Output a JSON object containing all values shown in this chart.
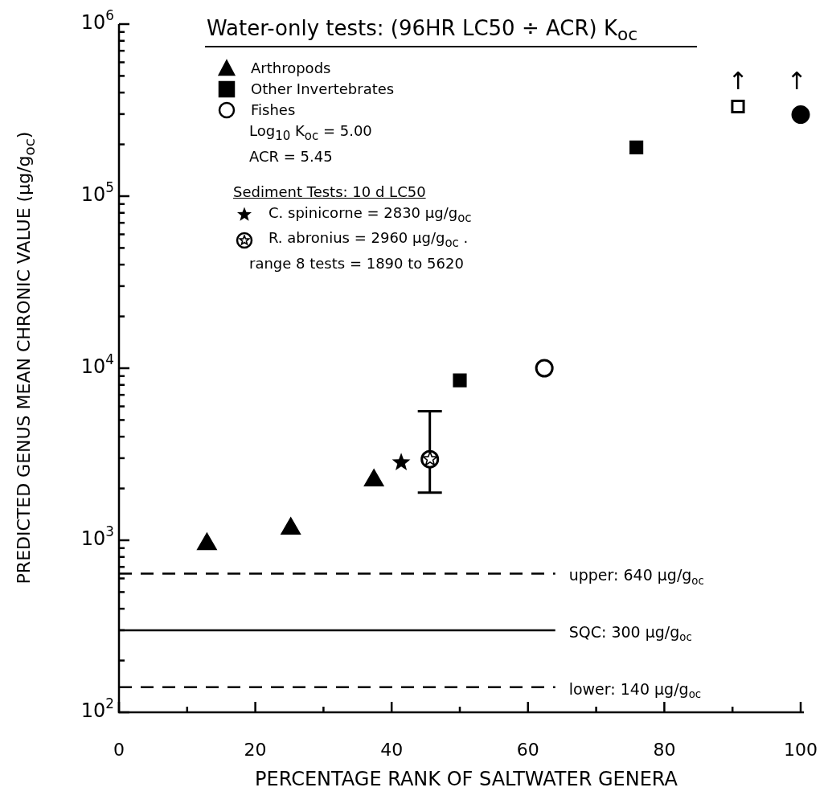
{
  "chart_data": {
    "type": "scatter",
    "title": "Water-only tests:  (96HR LC50 ÷ ACR) K$_{oc}$",
    "xlabel": "PERCENTAGE RANK OF SALTWATER GENERA",
    "ylabel": "PREDICTED GENUS MEAN CHRONIC VALUE  (µg/g$_{oc}$)",
    "xlim": [
      0,
      100
    ],
    "xticks": [
      0,
      {
        "value": 10,
        "label": null
      },
      20,
      {
        "value": 30,
        "label": null
      },
      40,
      {
        "value": 50,
        "label": null
      },
      60,
      {
        "value": 70,
        "label": null
      },
      80,
      {
        "value": 90,
        "label": null
      },
      100
    ],
    "ylim": [
      100,
      1000000
    ],
    "yticks": [
      {
        "value": 100,
        "label": "10$^{2}$"
      },
      {
        "value": 200,
        "label": null
      },
      {
        "value": 300,
        "label": null
      },
      {
        "value": 400,
        "label": null
      },
      {
        "value": 500,
        "label": null
      },
      {
        "value": 600,
        "label": null
      },
      {
        "value": 700,
        "label": null
      },
      {
        "value": 800,
        "label": null
      },
      {
        "value": 900,
        "label": null
      },
      {
        "value": 1000,
        "label": "10$^{3}$"
      },
      {
        "value": 2000,
        "label": null
      },
      {
        "value": 3000,
        "label": null
      },
      {
        "value": 4000,
        "label": null
      },
      {
        "value": 5000,
        "label": null
      },
      {
        "value": 6000,
        "label": null
      },
      {
        "value": 7000,
        "label": null
      },
      {
        "value": 8000,
        "label": null
      },
      {
        "value": 9000,
        "label": null
      },
      {
        "value": 10000,
        "label": "10$^{4}$"
      },
      {
        "value": 20000,
        "label": null
      },
      {
        "value": 30000,
        "label": null
      },
      {
        "value": 40000,
        "label": null
      },
      {
        "value": 50000,
        "label": null
      },
      {
        "value": 60000,
        "label": null
      },
      {
        "value": 70000,
        "label": null
      },
      {
        "value": 80000,
        "label": null
      },
      {
        "value": 90000,
        "label": null
      },
      {
        "value": 100000,
        "label": "10$^{5}$"
      },
      {
        "value": 200000,
        "label": null
      },
      {
        "value": 300000,
        "label": null
      },
      {
        "value": 400000,
        "label": null
      },
      {
        "value": 500000,
        "label": null
      },
      {
        "value": 600000,
        "label": null
      },
      {
        "value": 700000,
        "label": null
      },
      {
        "value": 800000,
        "label": null
      },
      {
        "value": 900000,
        "label": null
      },
      {
        "value": 1000000,
        "label": "10$^{6}$"
      }
    ],
    "log": "y",
    "legend": "top left",
    "series": [
      {
        "name": "Arthropods",
        "marker": "triangle",
        "color": "#000000",
        "x": [
          12.9,
          25.2,
          37.4
        ],
        "values": [
          950,
          1170,
          2230
        ]
      },
      {
        "name": "Other Invertebrates",
        "marker": "square",
        "color": "#000000",
        "colors": [
          "#000000",
          "#000000",
          "#ffffff"
        ],
        "x": [
          50,
          75.9,
          90.8
        ],
        "values": [
          8500,
          192000,
          332000
        ]
      },
      {
        "name": "Fishes",
        "marker": "circle",
        "color": "#000000",
        "colors": [
          "#ffffff",
          "#000000"
        ],
        "x": [
          62.4,
          100
        ],
        "values": [
          10000,
          298000
        ]
      },
      {
        "name": "C. spinicorne = 2830 µg/g$_{oc}$",
        "marker": "star",
        "color": "#000000",
        "x": [
          41.4
        ],
        "values": [
          2830
        ]
      },
      {
        "name": "R. abronius = 2960 µg/g$_{oc}$ .",
        "marker": "circle",
        "color": "#000000",
        "colors": [
          "#ffffff"
        ],
        "x": [
          45.6
        ],
        "values": [
          2960
        ],
        "errors": [
          [
            1890,
            5620
          ]
        ]
      }
    ],
    "ref_lines": [
      {
        "axis": "y",
        "value": 640,
        "label": "upper: 640 µg/g$_{oc}$",
        "line_style": "dashed",
        "color": "#000000"
      },
      {
        "axis": "y",
        "value": 300,
        "label": "SQC: 300 µg/g$_{oc}$",
        "line_style": "solid",
        "color": "#000000"
      },
      {
        "axis": "y",
        "value": 140,
        "label": "lower: 140 µg/g$_{oc}$",
        "line_style": "dashed",
        "color": "#000000"
      }
    ],
    "annotations": [
      "Log$_{10}$ K$_{oc}$ = 5.00",
      "ACR = 5.45",
      "Sediment Tests: 10 d LC50",
      "range 8 tests = 1890 to 5620",
      "↑",
      "↑"
    ]
  }
}
